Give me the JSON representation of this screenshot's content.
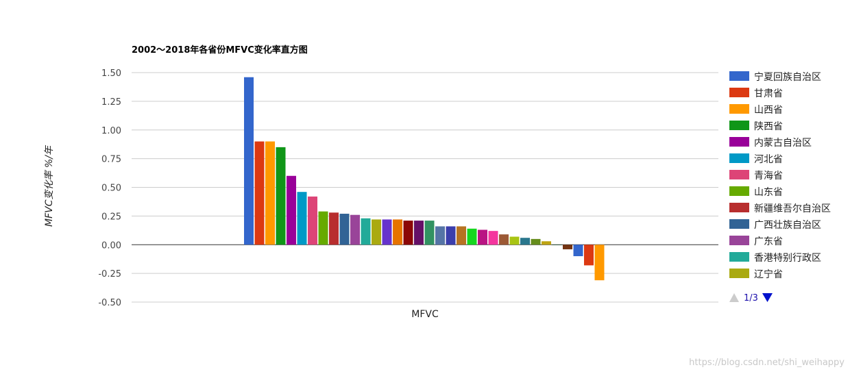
{
  "chart_data": {
    "type": "bar",
    "title": "2002～2018年各省份MFVC变化率直方图",
    "ylabel": "MFVC变化率 %/年",
    "xlabel": "MFVC",
    "ylim": [
      -0.5,
      1.5
    ],
    "yticks": [
      "1.50",
      "1.25",
      "1.00",
      "0.75",
      "0.50",
      "0.25",
      "0.00",
      "-0.25",
      "-0.50"
    ],
    "ytick_values": [
      1.5,
      1.25,
      1.0,
      0.75,
      0.5,
      0.25,
      0.0,
      -0.25,
      -0.5
    ],
    "grid": true,
    "legend_position": "right",
    "series": [
      {
        "name": "宁夏回族自治区",
        "value": 1.46,
        "color": "#3366cc"
      },
      {
        "name": "甘肃省",
        "value": 0.9,
        "color": "#dc3912"
      },
      {
        "name": "山西省",
        "value": 0.9,
        "color": "#ff9900"
      },
      {
        "name": "陕西省",
        "value": 0.85,
        "color": "#109618"
      },
      {
        "name": "内蒙古自治区",
        "value": 0.6,
        "color": "#990099"
      },
      {
        "name": "河北省",
        "value": 0.46,
        "color": "#0099c6"
      },
      {
        "name": "青海省",
        "value": 0.42,
        "color": "#dd4477"
      },
      {
        "name": "山东省",
        "value": 0.29,
        "color": "#66aa00"
      },
      {
        "name": "新疆维吾尔自治区",
        "value": 0.28,
        "color": "#b82e2e"
      },
      {
        "name": "广西壮族自治区",
        "value": 0.27,
        "color": "#316395"
      },
      {
        "name": "广东省",
        "value": 0.26,
        "color": "#994499"
      },
      {
        "name": "香港特别行政区",
        "value": 0.23,
        "color": "#22aa99"
      },
      {
        "name": "辽宁省",
        "value": 0.22,
        "color": "#aaaa11"
      },
      {
        "value": 0.22,
        "color": "#6633cc"
      },
      {
        "value": 0.22,
        "color": "#e67300"
      },
      {
        "value": 0.21,
        "color": "#8b0707"
      },
      {
        "value": 0.21,
        "color": "#651067"
      },
      {
        "value": 0.21,
        "color": "#329262"
      },
      {
        "value": 0.16,
        "color": "#5574a6"
      },
      {
        "value": 0.16,
        "color": "#3b3eac"
      },
      {
        "value": 0.16,
        "color": "#b77322"
      },
      {
        "value": 0.14,
        "color": "#16d620"
      },
      {
        "value": 0.13,
        "color": "#b91383"
      },
      {
        "value": 0.12,
        "color": "#f4359e"
      },
      {
        "value": 0.09,
        "color": "#9c5935"
      },
      {
        "value": 0.07,
        "color": "#a9c413"
      },
      {
        "value": 0.06,
        "color": "#2a778d"
      },
      {
        "value": 0.05,
        "color": "#668d1c"
      },
      {
        "value": 0.03,
        "color": "#bea413"
      },
      {
        "value": 0.0,
        "color": "#0c5922"
      },
      {
        "value": -0.04,
        "color": "#743411"
      },
      {
        "value": -0.1,
        "color": "#3366cc"
      },
      {
        "value": -0.18,
        "color": "#dc3912"
      },
      {
        "value": -0.31,
        "color": "#ff9900"
      }
    ]
  },
  "legend": {
    "pager_text": "1/3",
    "pager_prev_icon": "triangle-up",
    "pager_next_icon": "triangle-down",
    "pager_prev_color": "#cccccc",
    "pager_next_color": "#0011cc"
  },
  "watermark": "https://blog.csdn.net/shi_weihappy"
}
